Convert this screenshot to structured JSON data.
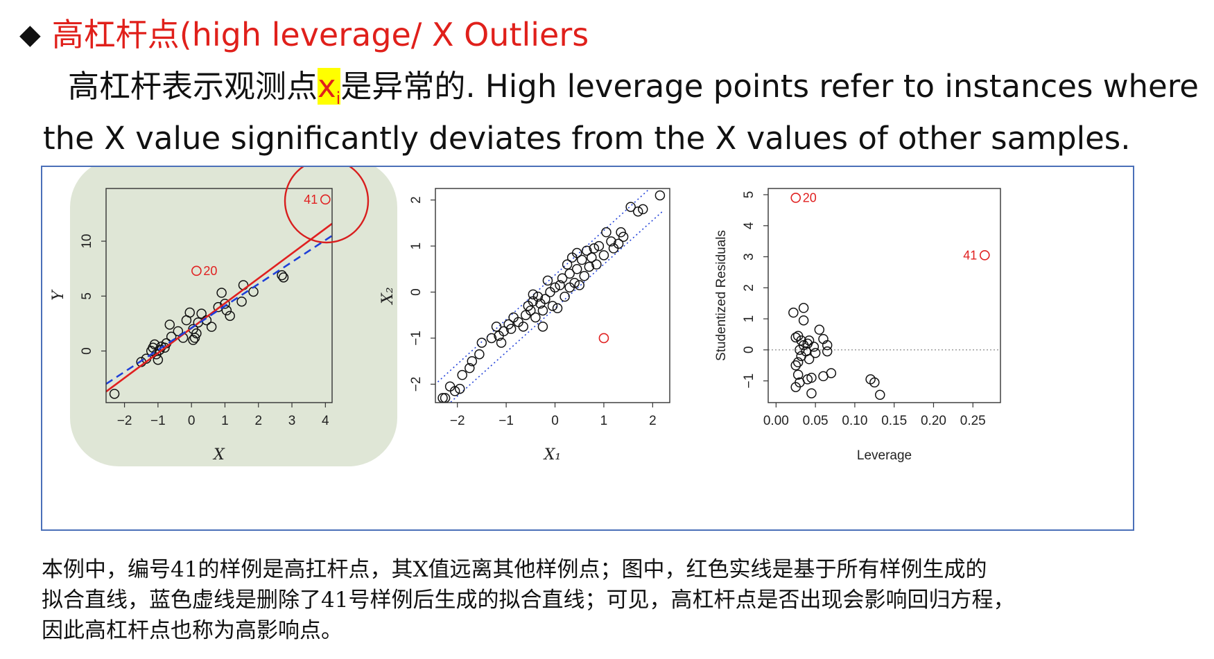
{
  "slide": {
    "bullet_icon": "diamond-bullet-icon",
    "heading": "高杠杆点(high leverage/ X Outliers",
    "intro": {
      "part1": "高杠杆表示观测点",
      "var": "x",
      "sub": "i",
      "part2": "是异常的. High leverage points refer to instances where",
      "line2": "the X value significantly deviates from the X values of other samples."
    },
    "caption": [
      "本例中，编号41的样例是高扛杆点，其X值远离其他样例点；图中，红色实线是基于所有样例生成的",
      "拟合直线，蓝色虚线是删除了41号样例后生成的拟合直线；可见，高杠杆点是否出现会影响回归方程，",
      "因此高杠杆点也称为高影响点。"
    ]
  },
  "colors": {
    "heading": "#e0201b",
    "highlight": "#ffff00",
    "red_fit": "#e02020",
    "blue_fit": "#1f3fd8",
    "panel_bg": "#dfe6d6",
    "frame": "#4a6fb8"
  },
  "chart_data": [
    {
      "type": "scatter",
      "xlabel": "X",
      "ylabel": "Y",
      "xticks": [
        "−2",
        "−1",
        "0",
        "1",
        "2",
        "3",
        "4"
      ],
      "yticks": [
        "0",
        "5",
        "10"
      ],
      "xlim": [
        -2.55,
        4.2
      ],
      "ylim": [
        -4.7,
        14.8
      ],
      "points": [
        [
          -2.3,
          -3.9
        ],
        [
          -1.5,
          -1.0
        ],
        [
          -1.35,
          -0.7
        ],
        [
          -1.2,
          0.0
        ],
        [
          -1.15,
          0.3
        ],
        [
          -1.1,
          0.6
        ],
        [
          -1.05,
          -0.3
        ],
        [
          -1.0,
          -0.8
        ],
        [
          -0.95,
          0.1
        ],
        [
          -0.9,
          0.4
        ],
        [
          -0.8,
          0.3
        ],
        [
          -0.75,
          0.7
        ],
        [
          -0.65,
          2.4
        ],
        [
          -0.6,
          1.3
        ],
        [
          -0.4,
          1.8
        ],
        [
          -0.25,
          1.2
        ],
        [
          -0.15,
          2.8
        ],
        [
          -0.05,
          3.5
        ],
        [
          0.05,
          2.0
        ],
        [
          0.1,
          1.2
        ],
        [
          0.15,
          1.6
        ],
        [
          0.2,
          2.6
        ],
        [
          0.3,
          3.4
        ],
        [
          0.45,
          2.8
        ],
        [
          0.6,
          2.2
        ],
        [
          0.8,
          4.0
        ],
        [
          0.9,
          5.3
        ],
        [
          1.0,
          4.3
        ],
        [
          1.05,
          3.7
        ],
        [
          1.15,
          3.2
        ],
        [
          1.5,
          4.5
        ],
        [
          1.55,
          6.0
        ],
        [
          1.85,
          5.4
        ],
        [
          2.7,
          6.9
        ],
        [
          2.75,
          6.7
        ],
        [
          0.05,
          1.0
        ]
      ],
      "outliers": [
        {
          "label": "41",
          "x": 4.0,
          "y": 13.8
        },
        {
          "label": "20",
          "x": 0.15,
          "y": 7.3
        }
      ],
      "lines": [
        {
          "style": "solid",
          "color": "#e02020",
          "x": [
            -2.55,
            4.2
          ],
          "y": [
            -3.7,
            11.6
          ]
        },
        {
          "style": "dashed",
          "color": "#1f3fd8",
          "x": [
            -2.55,
            4.2
          ],
          "y": [
            -3.0,
            10.5
          ]
        }
      ]
    },
    {
      "type": "scatter",
      "xlabel": "X₁",
      "ylabel": "X₂",
      "xticks": [
        "−2",
        "−1",
        "0",
        "1",
        "2"
      ],
      "yticks": [
        "−2",
        "−1",
        "0",
        "1",
        "2"
      ],
      "xlim": [
        -2.45,
        2.35
      ],
      "ylim": [
        -2.4,
        2.25
      ],
      "points": [
        [
          -2.3,
          -2.3
        ],
        [
          -2.25,
          -2.3
        ],
        [
          -2.15,
          -2.05
        ],
        [
          -2.05,
          -2.15
        ],
        [
          -1.95,
          -2.1
        ],
        [
          -1.9,
          -1.8
        ],
        [
          -1.75,
          -1.65
        ],
        [
          -1.7,
          -1.5
        ],
        [
          -1.55,
          -1.35
        ],
        [
          -1.5,
          -1.1
        ],
        [
          -1.3,
          -1.0
        ],
        [
          -1.2,
          -0.75
        ],
        [
          -1.15,
          -0.95
        ],
        [
          -1.1,
          -1.1
        ],
        [
          -1.05,
          -0.85
        ],
        [
          -0.95,
          -0.7
        ],
        [
          -0.9,
          -0.8
        ],
        [
          -0.85,
          -0.55
        ],
        [
          -0.75,
          -0.65
        ],
        [
          -0.65,
          -0.75
        ],
        [
          -0.6,
          -0.5
        ],
        [
          -0.55,
          -0.3
        ],
        [
          -0.5,
          -0.4
        ],
        [
          -0.45,
          -0.2
        ],
        [
          -0.4,
          -0.55
        ],
        [
          -0.35,
          -0.1
        ],
        [
          -0.3,
          -0.25
        ],
        [
          -0.25,
          -0.4
        ],
        [
          -0.2,
          -0.15
        ],
        [
          -0.15,
          0.25
        ],
        [
          -0.1,
          0.0
        ],
        [
          -0.05,
          -0.3
        ],
        [
          0.0,
          0.1
        ],
        [
          0.05,
          -0.35
        ],
        [
          0.1,
          0.15
        ],
        [
          0.15,
          0.3
        ],
        [
          0.2,
          -0.1
        ],
        [
          0.25,
          0.6
        ],
        [
          0.3,
          0.4
        ],
        [
          0.35,
          0.75
        ],
        [
          0.4,
          0.2
        ],
        [
          0.45,
          0.5
        ],
        [
          0.5,
          0.15
        ],
        [
          0.55,
          0.7
        ],
        [
          0.6,
          0.35
        ],
        [
          0.65,
          0.9
        ],
        [
          0.7,
          0.55
        ],
        [
          0.75,
          0.75
        ],
        [
          0.8,
          0.95
        ],
        [
          0.85,
          0.6
        ],
        [
          0.9,
          1.0
        ],
        [
          1.0,
          0.8
        ],
        [
          1.05,
          1.3
        ],
        [
          1.15,
          1.1
        ],
        [
          1.2,
          0.95
        ],
        [
          1.3,
          1.05
        ],
        [
          1.35,
          1.3
        ],
        [
          1.4,
          1.2
        ],
        [
          1.55,
          1.85
        ],
        [
          1.7,
          1.75
        ],
        [
          1.8,
          1.8
        ],
        [
          2.15,
          2.1
        ],
        [
          -0.25,
          -0.75
        ],
        [
          0.45,
          0.85
        ],
        [
          0.3,
          0.1
        ],
        [
          -0.45,
          -0.05
        ]
      ],
      "outliers": [
        {
          "label": "",
          "x": 1.0,
          "y": -1.0
        }
      ],
      "bands": [
        {
          "style": "dotted",
          "color": "#1f3fd8",
          "x": [
            -2.4,
            2.2
          ],
          "y": [
            -1.95,
            2.5
          ]
        },
        {
          "style": "dotted",
          "color": "#1f3fd8",
          "x": [
            -2.2,
            2.2
          ],
          "y": [
            -2.45,
            1.75
          ]
        }
      ]
    },
    {
      "type": "scatter",
      "xlabel": "Leverage",
      "ylabel": "Studentized Residuals",
      "xticks": [
        "0.00",
        "0.05",
        "0.10",
        "0.15",
        "0.20",
        "0.25"
      ],
      "yticks": [
        "−1",
        "0",
        "1",
        "2",
        "3",
        "4",
        "5"
      ],
      "xlim": [
        -0.01,
        0.285
      ],
      "ylim": [
        -1.7,
        5.2
      ],
      "points": [
        [
          0.022,
          1.2
        ],
        [
          0.025,
          0.4
        ],
        [
          0.025,
          -0.5
        ],
        [
          0.025,
          -1.2
        ],
        [
          0.028,
          0.45
        ],
        [
          0.028,
          -0.4
        ],
        [
          0.028,
          -0.8
        ],
        [
          0.03,
          0.0
        ],
        [
          0.03,
          -1.05
        ],
        [
          0.032,
          0.3
        ],
        [
          0.032,
          -0.2
        ],
        [
          0.035,
          1.35
        ],
        [
          0.035,
          0.95
        ],
        [
          0.035,
          0.15
        ],
        [
          0.038,
          -0.05
        ],
        [
          0.04,
          0.2
        ],
        [
          0.04,
          -0.95
        ],
        [
          0.042,
          0.3
        ],
        [
          0.042,
          -0.3
        ],
        [
          0.045,
          -1.4
        ],
        [
          0.045,
          -0.9
        ],
        [
          0.048,
          0.1
        ],
        [
          0.05,
          -0.1
        ],
        [
          0.055,
          0.65
        ],
        [
          0.06,
          0.35
        ],
        [
          0.06,
          -0.85
        ],
        [
          0.065,
          0.15
        ],
        [
          0.065,
          -0.05
        ],
        [
          0.07,
          -0.75
        ],
        [
          0.12,
          -0.95
        ],
        [
          0.125,
          -1.05
        ],
        [
          0.132,
          -1.45
        ]
      ],
      "outliers": [
        {
          "label": "20",
          "x": 0.025,
          "y": 4.9
        },
        {
          "label": "41",
          "x": 0.265,
          "y": 3.05
        }
      ],
      "reference_line": {
        "style": "dotted",
        "y": 0
      }
    }
  ]
}
